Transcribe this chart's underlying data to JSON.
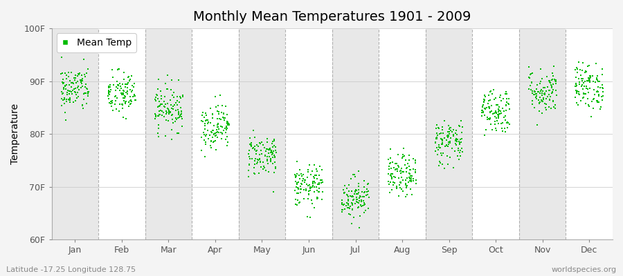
{
  "title": "Monthly Mean Temperatures 1901 - 2009",
  "ylabel": "Temperature",
  "xlabel_labels": [
    "Jan",
    "Feb",
    "Mar",
    "Apr",
    "May",
    "Jun",
    "Jul",
    "Aug",
    "Sep",
    "Oct",
    "Nov",
    "Dec"
  ],
  "ytick_labels": [
    "60F",
    "70F",
    "80F",
    "90F",
    "100F"
  ],
  "ytick_values": [
    60,
    70,
    80,
    90,
    100
  ],
  "ylim": [
    60,
    100
  ],
  "marker_color": "#00bb00",
  "marker": "s",
  "marker_size": 4,
  "background_color": "#f4f4f4",
  "plot_bg_white": "#ffffff",
  "plot_bg_gray": "#e8e8e8",
  "legend_label": "Mean Temp",
  "footer_left": "Latitude -17.25 Longitude 128.75",
  "footer_right": "worldspecies.org",
  "n_years": 109,
  "monthly_means": [
    88.5,
    87.5,
    85.0,
    81.5,
    76.0,
    70.0,
    68.0,
    72.0,
    78.5,
    84.5,
    88.0,
    89.0
  ],
  "monthly_stds": [
    2.2,
    2.2,
    2.2,
    2.2,
    2.0,
    2.0,
    2.0,
    2.0,
    2.2,
    2.2,
    2.2,
    2.2
  ],
  "title_fontsize": 14,
  "axis_fontsize": 10,
  "tick_fontsize": 9,
  "footer_fontsize": 8
}
